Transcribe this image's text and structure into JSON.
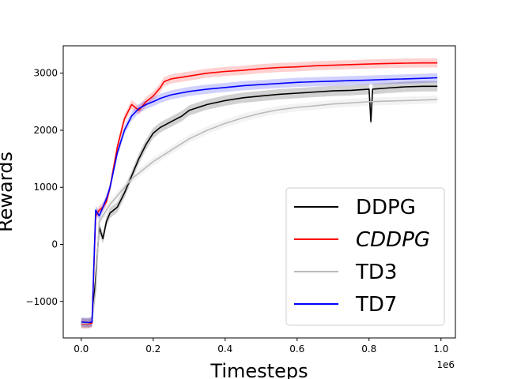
{
  "chart_data": {
    "type": "line",
    "title": "",
    "xlabel": "Timesteps",
    "ylabel": "Rewards",
    "x_offset_label": "1e6",
    "xlim": [
      -0.05,
      1.04
    ],
    "ylim": [
      -1640,
      3480
    ],
    "xticks": [
      0.0,
      0.2,
      0.4,
      0.6,
      0.8,
      1.0
    ],
    "xtick_labels": [
      "0.0",
      "0.2",
      "0.4",
      "0.6",
      "0.8",
      "1.0"
    ],
    "yticks": [
      -1000,
      0,
      1000,
      2000,
      3000
    ],
    "ytick_labels": [
      "−1000",
      "0",
      "1000",
      "2000",
      "3000"
    ],
    "grid": false,
    "legend_position": "lower-right",
    "series": [
      {
        "name": "DDPG",
        "italic": false,
        "color": "#000000",
        "band_color": "#000000",
        "band_width": 90,
        "x": [
          0.0,
          0.02,
          0.03,
          0.04,
          0.05,
          0.06,
          0.07,
          0.08,
          0.1,
          0.12,
          0.14,
          0.16,
          0.18,
          0.2,
          0.22,
          0.25,
          0.28,
          0.3,
          0.35,
          0.4,
          0.45,
          0.5,
          0.55,
          0.6,
          0.65,
          0.7,
          0.75,
          0.8,
          0.805,
          0.81,
          0.85,
          0.9,
          0.95,
          0.99
        ],
        "y": [
          -1380,
          -1380,
          -1350,
          -600,
          300,
          100,
          400,
          550,
          650,
          900,
          1200,
          1500,
          1750,
          1950,
          2050,
          2150,
          2250,
          2350,
          2450,
          2520,
          2570,
          2600,
          2630,
          2650,
          2670,
          2690,
          2700,
          2720,
          2150,
          2720,
          2740,
          2760,
          2770,
          2770
        ]
      },
      {
        "name": "CDDPG",
        "italic": true,
        "color": "#ff0000",
        "band_color": "#ff0000",
        "band_width": 80,
        "x": [
          0.0,
          0.02,
          0.03,
          0.04,
          0.05,
          0.06,
          0.07,
          0.08,
          0.1,
          0.12,
          0.14,
          0.16,
          0.18,
          0.2,
          0.22,
          0.23,
          0.25,
          0.3,
          0.35,
          0.4,
          0.45,
          0.5,
          0.55,
          0.6,
          0.65,
          0.7,
          0.75,
          0.8,
          0.85,
          0.9,
          0.95,
          0.99
        ],
        "y": [
          -1390,
          -1390,
          -1380,
          500,
          600,
          650,
          750,
          1000,
          1700,
          2200,
          2450,
          2350,
          2500,
          2600,
          2750,
          2850,
          2900,
          2950,
          3000,
          3030,
          3050,
          3080,
          3100,
          3110,
          3130,
          3140,
          3150,
          3160,
          3170,
          3175,
          3180,
          3180
        ]
      },
      {
        "name": "TD3",
        "italic": false,
        "color": "#bbbbbb",
        "band_color": "#bbbbbb",
        "band_width": 70,
        "x": [
          0.0,
          0.02,
          0.03,
          0.04,
          0.05,
          0.06,
          0.07,
          0.08,
          0.1,
          0.12,
          0.14,
          0.16,
          0.18,
          0.2,
          0.25,
          0.3,
          0.35,
          0.4,
          0.45,
          0.5,
          0.55,
          0.6,
          0.65,
          0.7,
          0.75,
          0.8,
          0.85,
          0.9,
          0.95,
          0.99
        ],
        "y": [
          -1380,
          -1380,
          -1350,
          -800,
          400,
          500,
          600,
          700,
          850,
          1000,
          1150,
          1250,
          1350,
          1450,
          1650,
          1850,
          2000,
          2120,
          2220,
          2300,
          2360,
          2400,
          2430,
          2460,
          2480,
          2500,
          2510,
          2520,
          2530,
          2540
        ]
      },
      {
        "name": "TD7",
        "italic": false,
        "color": "#0000ff",
        "band_color": "#0000ff",
        "band_width": 80,
        "x": [
          0.0,
          0.02,
          0.03,
          0.04,
          0.05,
          0.06,
          0.07,
          0.08,
          0.1,
          0.12,
          0.14,
          0.16,
          0.18,
          0.2,
          0.22,
          0.25,
          0.3,
          0.35,
          0.4,
          0.45,
          0.5,
          0.55,
          0.6,
          0.65,
          0.7,
          0.75,
          0.8,
          0.85,
          0.9,
          0.95,
          0.99
        ],
        "y": [
          -1360,
          -1370,
          -1360,
          600,
          500,
          650,
          800,
          1000,
          1600,
          2000,
          2250,
          2380,
          2450,
          2500,
          2560,
          2620,
          2680,
          2720,
          2750,
          2780,
          2800,
          2820,
          2840,
          2850,
          2860,
          2870,
          2880,
          2890,
          2900,
          2910,
          2920
        ]
      }
    ]
  }
}
